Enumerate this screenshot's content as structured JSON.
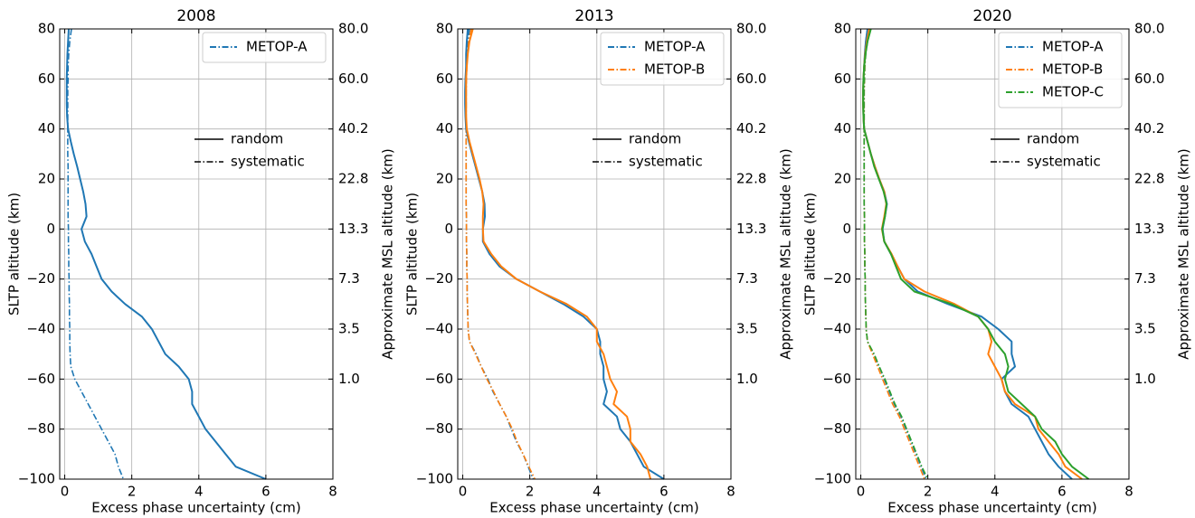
{
  "chart_data": [
    {
      "type": "line",
      "title": "2008",
      "xlabel": "Excess phase uncertainty (cm)",
      "ylabel": "SLTP altitude (km)",
      "y2label": "Approximate MSL altitude (km)",
      "xlim": [
        -0.15,
        8
      ],
      "xticks": [
        0,
        2,
        4,
        6,
        8
      ],
      "ylim": [
        -100,
        80
      ],
      "yticks": [
        80,
        60,
        40,
        20,
        0,
        {
          "value": -20,
          "label": "−20"
        },
        {
          "value": -40,
          "label": "−40"
        },
        {
          "value": -60,
          "label": "−60"
        },
        {
          "value": -80,
          "label": "−80"
        },
        {
          "value": -100,
          "label": "−100"
        }
      ],
      "y2ticklabels": [
        "80.0",
        "60.0",
        "40.2",
        "22.8",
        "13.3",
        "7.3",
        "3.5",
        "1.0",
        null,
        null
      ],
      "grid": true,
      "legend": "upper right",
      "style_legend": [
        {
          "label": "random",
          "dash": "solid"
        },
        {
          "label": "systematic",
          "dash": "dashdot"
        }
      ],
      "altitudes": [
        80,
        75,
        70,
        65,
        60,
        55,
        50,
        45,
        40,
        35,
        30,
        25,
        20,
        15,
        10,
        5,
        0,
        -5,
        -10,
        -15,
        -20,
        -25,
        -30,
        -35,
        -40,
        -45,
        -50,
        -55,
        -60,
        -65,
        -70,
        -75,
        -80,
        -85,
        -90,
        -95,
        -100
      ],
      "series": [
        {
          "name": "METOP-A",
          "color": "#1f77b4",
          "random": [
            0.12,
            0.1,
            0.08,
            0.07,
            0.06,
            0.06,
            0.06,
            0.07,
            0.1,
            0.18,
            0.27,
            0.37,
            0.46,
            0.55,
            0.62,
            0.65,
            0.5,
            0.6,
            0.8,
            0.95,
            1.1,
            1.4,
            1.8,
            2.3,
            2.6,
            2.8,
            3.0,
            3.4,
            3.7,
            3.8,
            3.8,
            4.0,
            4.2,
            4.5,
            4.8,
            5.1,
            6.0
          ],
          "systematic": [
            0.2,
            0.15,
            0.12,
            0.1,
            0.1,
            0.09,
            0.09,
            0.09,
            0.09,
            0.09,
            0.09,
            0.1,
            0.1,
            0.1,
            0.1,
            0.1,
            0.11,
            0.11,
            0.12,
            0.12,
            0.13,
            0.13,
            0.14,
            0.14,
            0.15,
            0.15,
            0.16,
            0.18,
            0.3,
            0.5,
            0.7,
            0.9,
            1.1,
            1.3,
            1.5,
            1.6,
            1.75
          ]
        }
      ]
    },
    {
      "type": "line",
      "title": "2013",
      "xlabel": "Excess phase uncertainty (cm)",
      "ylabel": "SLTP altitude (km)",
      "y2label": "Approximate MSL altitude (km)",
      "xlim": [
        -0.15,
        8
      ],
      "xticks": [
        0,
        2,
        4,
        6,
        8
      ],
      "ylim": [
        -100,
        80
      ],
      "yticks": [
        80,
        60,
        40,
        20,
        0,
        {
          "value": -20,
          "label": "−20"
        },
        {
          "value": -40,
          "label": "−40"
        },
        {
          "value": -60,
          "label": "−60"
        },
        {
          "value": -80,
          "label": "−80"
        },
        {
          "value": -100,
          "label": "−100"
        }
      ],
      "y2ticklabels": [
        "80.0",
        "60.0",
        "40.2",
        "22.8",
        "13.3",
        "7.3",
        "3.5",
        "1.0",
        null,
        null
      ],
      "grid": true,
      "legend": "upper right",
      "style_legend": [
        {
          "label": "random",
          "dash": "solid"
        },
        {
          "label": "systematic",
          "dash": "dashdot"
        }
      ],
      "altitudes": [
        80,
        75,
        70,
        65,
        60,
        55,
        50,
        45,
        40,
        35,
        30,
        25,
        20,
        15,
        10,
        5,
        0,
        -5,
        -10,
        -15,
        -20,
        -25,
        -30,
        -35,
        -40,
        -45,
        -50,
        -55,
        -60,
        -65,
        -70,
        -75,
        -80,
        -85,
        -90,
        -95,
        -100
      ],
      "series": [
        {
          "name": "METOP-A",
          "color": "#1f77b4",
          "random": [
            0.15,
            0.12,
            0.1,
            0.1,
            0.08,
            0.07,
            0.07,
            0.08,
            0.1,
            0.18,
            0.28,
            0.38,
            0.48,
            0.58,
            0.65,
            0.66,
            0.6,
            0.6,
            0.8,
            1.1,
            1.6,
            2.3,
            3.0,
            3.6,
            4.0,
            4.1,
            4.1,
            4.2,
            4.2,
            4.3,
            4.2,
            4.6,
            4.7,
            5.0,
            5.2,
            5.4,
            6.0
          ],
          "systematic": [
            0.2,
            0.15,
            0.12,
            0.1,
            0.1,
            0.1,
            0.1,
            0.1,
            0.1,
            0.1,
            0.1,
            0.1,
            0.1,
            0.1,
            0.1,
            0.11,
            0.11,
            0.11,
            0.12,
            0.12,
            0.13,
            0.13,
            0.14,
            0.15,
            0.16,
            0.2,
            0.4,
            0.55,
            0.75,
            0.9,
            1.1,
            1.3,
            1.45,
            1.6,
            1.8,
            1.95,
            2.1
          ]
        },
        {
          "name": "METOP-B",
          "color": "#ff7f0e",
          "random": [
            0.3,
            0.2,
            0.15,
            0.12,
            0.1,
            0.1,
            0.1,
            0.1,
            0.12,
            0.2,
            0.3,
            0.4,
            0.5,
            0.58,
            0.62,
            0.6,
            0.6,
            0.62,
            0.85,
            1.15,
            1.6,
            2.3,
            3.1,
            3.7,
            4.0,
            4.0,
            4.2,
            4.3,
            4.4,
            4.6,
            4.5,
            4.9,
            5.0,
            5.0,
            5.3,
            5.5,
            5.6
          ],
          "systematic": [
            0.25,
            0.18,
            0.14,
            0.12,
            0.11,
            0.1,
            0.1,
            0.1,
            0.1,
            0.1,
            0.1,
            0.1,
            0.1,
            0.1,
            0.1,
            0.11,
            0.11,
            0.11,
            0.12,
            0.12,
            0.13,
            0.13,
            0.14,
            0.15,
            0.16,
            0.2,
            0.38,
            0.55,
            0.72,
            0.92,
            1.1,
            1.3,
            1.48,
            1.62,
            1.8,
            1.97,
            2.15
          ]
        }
      ]
    },
    {
      "type": "line",
      "title": "2020",
      "xlabel": "Excess phase uncertainty (cm)",
      "ylabel": "SLTP altitude (km)",
      "y2label": "Approximate MSL altitude (km)",
      "xlim": [
        -0.15,
        8
      ],
      "xticks": [
        0,
        2,
        4,
        6,
        8
      ],
      "ylim": [
        -100,
        80
      ],
      "yticks": [
        80,
        60,
        40,
        20,
        0,
        {
          "value": -20,
          "label": "−20"
        },
        {
          "value": -40,
          "label": "−40"
        },
        {
          "value": -60,
          "label": "−60"
        },
        {
          "value": -80,
          "label": "−80"
        },
        {
          "value": -100,
          "label": "−100"
        }
      ],
      "y2ticklabels": [
        "80.0",
        "60.0",
        "40.2",
        "22.8",
        "13.3",
        "7.3",
        "3.5",
        "1.0",
        null,
        null
      ],
      "grid": true,
      "legend": "upper right",
      "style_legend": [
        {
          "label": "random",
          "dash": "solid"
        },
        {
          "label": "systematic",
          "dash": "dashdot"
        }
      ],
      "altitudes": [
        80,
        75,
        70,
        65,
        60,
        55,
        50,
        45,
        40,
        35,
        30,
        25,
        20,
        15,
        10,
        5,
        0,
        -5,
        -10,
        -15,
        -20,
        -25,
        -30,
        -35,
        -40,
        -45,
        -50,
        -55,
        -60,
        -65,
        -70,
        -75,
        -80,
        -85,
        -90,
        -95,
        -100
      ],
      "series": [
        {
          "name": "METOP-A",
          "color": "#1f77b4",
          "random": [
            0.2,
            0.15,
            0.12,
            0.1,
            0.08,
            0.07,
            0.07,
            0.08,
            0.1,
            0.2,
            0.3,
            0.42,
            0.55,
            0.7,
            0.78,
            0.72,
            0.65,
            0.7,
            0.9,
            1.1,
            1.3,
            1.7,
            2.6,
            3.6,
            4.1,
            4.5,
            4.5,
            4.6,
            4.2,
            4.3,
            4.5,
            5.0,
            5.2,
            5.4,
            5.6,
            5.9,
            6.3
          ],
          "systematic": [
            0.2,
            0.15,
            0.12,
            0.1,
            0.1,
            0.1,
            0.1,
            0.1,
            0.1,
            0.1,
            0.1,
            0.1,
            0.1,
            0.1,
            0.1,
            0.11,
            0.11,
            0.11,
            0.12,
            0.12,
            0.13,
            0.13,
            0.14,
            0.15,
            0.16,
            0.2,
            0.38,
            0.55,
            0.7,
            0.85,
            1.0,
            1.2,
            1.35,
            1.5,
            1.65,
            1.8,
            1.95
          ]
        },
        {
          "name": "METOP-B",
          "color": "#ff7f0e",
          "random": [
            0.25,
            0.18,
            0.13,
            0.1,
            0.08,
            0.07,
            0.07,
            0.08,
            0.1,
            0.2,
            0.3,
            0.42,
            0.55,
            0.7,
            0.76,
            0.7,
            0.63,
            0.7,
            0.92,
            1.1,
            1.3,
            1.9,
            2.8,
            3.5,
            3.8,
            3.9,
            3.8,
            4.0,
            4.2,
            4.3,
            4.6,
            5.2,
            5.3,
            5.6,
            5.9,
            6.1,
            6.6
          ],
          "systematic": [
            0.25,
            0.18,
            0.14,
            0.12,
            0.11,
            0.1,
            0.1,
            0.1,
            0.1,
            0.1,
            0.1,
            0.1,
            0.1,
            0.1,
            0.1,
            0.11,
            0.11,
            0.11,
            0.12,
            0.12,
            0.13,
            0.13,
            0.14,
            0.15,
            0.16,
            0.2,
            0.35,
            0.5,
            0.65,
            0.8,
            0.95,
            1.15,
            1.3,
            1.45,
            1.6,
            1.75,
            1.9
          ]
        },
        {
          "name": "METOP-C",
          "color": "#2ca02c",
          "random": [
            0.3,
            0.2,
            0.14,
            0.1,
            0.08,
            0.07,
            0.07,
            0.08,
            0.1,
            0.2,
            0.3,
            0.4,
            0.54,
            0.68,
            0.77,
            0.72,
            0.64,
            0.7,
            0.9,
            1.05,
            1.2,
            1.6,
            2.7,
            3.5,
            3.8,
            4.0,
            4.3,
            4.4,
            4.3,
            4.4,
            4.8,
            5.2,
            5.4,
            5.8,
            6.0,
            6.3,
            6.8
          ],
          "systematic": [
            0.3,
            0.2,
            0.15,
            0.12,
            0.11,
            0.1,
            0.1,
            0.1,
            0.1,
            0.1,
            0.1,
            0.1,
            0.1,
            0.1,
            0.1,
            0.11,
            0.11,
            0.11,
            0.12,
            0.12,
            0.13,
            0.13,
            0.14,
            0.15,
            0.16,
            0.2,
            0.4,
            0.55,
            0.72,
            0.87,
            1.02,
            1.22,
            1.37,
            1.52,
            1.67,
            1.82,
            2.0
          ]
        }
      ]
    }
  ]
}
